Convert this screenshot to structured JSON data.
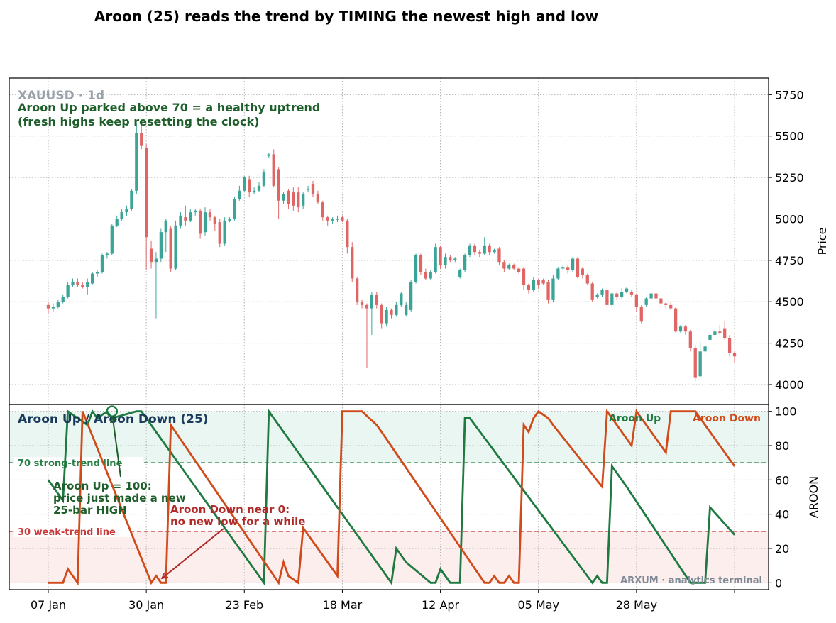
{
  "title": "Aroon (25) reads the trend by TIMING the newest high and low",
  "chart_data": [
    {
      "type": "candlestick",
      "watermark": "XAUUSD · 1d",
      "ylabel": "Price",
      "ylim": [
        3880,
        5850
      ],
      "yticks": [
        4000,
        4250,
        4500,
        4750,
        5000,
        5250,
        5500,
        5750
      ],
      "grid": true,
      "up_color": "#3aa597",
      "down_color": "#e06666",
      "annotation": "Aroon Up parked above 70 = a healthy uptrend\n(fresh highs keep resetting the clock)",
      "annotation_color": "#1e5e2a",
      "candles": [
        [
          0,
          4480,
          4460,
          4500,
          4430
        ],
        [
          1,
          4460,
          4470,
          4490,
          4440
        ],
        [
          2,
          4470,
          4500,
          4510,
          4460
        ],
        [
          3,
          4500,
          4530,
          4540,
          4490
        ],
        [
          4,
          4530,
          4600,
          4620,
          4520
        ],
        [
          5,
          4600,
          4620,
          4640,
          4590
        ],
        [
          6,
          4620,
          4600,
          4640,
          4590
        ],
        [
          7,
          4600,
          4590,
          4620,
          4580
        ],
        [
          8,
          4590,
          4620,
          4640,
          4540
        ],
        [
          9,
          4610,
          4670,
          4680,
          4600
        ],
        [
          10,
          4670,
          4680,
          4690,
          4650
        ],
        [
          11,
          4680,
          4780,
          4790,
          4670
        ],
        [
          12,
          4780,
          4790,
          4800,
          4760
        ],
        [
          13,
          4790,
          4960,
          4970,
          4780
        ],
        [
          14,
          4960,
          5000,
          5020,
          4950
        ],
        [
          15,
          5000,
          5040,
          5060,
          4990
        ],
        [
          16,
          5040,
          5060,
          5080,
          5020
        ],
        [
          17,
          5060,
          5170,
          5180,
          5050
        ],
        [
          18,
          5170,
          5520,
          5580,
          5150
        ],
        [
          19,
          5520,
          5440,
          5600,
          5420
        ],
        [
          20,
          5430,
          4890,
          5450,
          4690
        ],
        [
          21,
          4820,
          4740,
          4870,
          4700
        ],
        [
          22,
          4740,
          4760,
          4800,
          4400
        ],
        [
          23,
          4760,
          4920,
          4940,
          4740
        ],
        [
          24,
          4920,
          4990,
          5000,
          4800
        ],
        [
          25,
          4940,
          4700,
          4960,
          4680
        ],
        [
          26,
          4700,
          4960,
          4990,
          4690
        ],
        [
          27,
          4960,
          5020,
          5040,
          4940
        ],
        [
          28,
          5010,
          4990,
          5080,
          4960
        ],
        [
          29,
          4990,
          5040,
          5060,
          4980
        ],
        [
          30,
          5040,
          5050,
          5060,
          5020
        ],
        [
          31,
          5050,
          4910,
          5060,
          4880
        ],
        [
          32,
          4920,
          5040,
          5070,
          4900
        ],
        [
          33,
          5040,
          5010,
          5060,
          4990
        ],
        [
          34,
          5010,
          4970,
          5020,
          4930
        ],
        [
          35,
          4980,
          4850,
          5000,
          4830
        ],
        [
          36,
          4850,
          4990,
          5010,
          4840
        ],
        [
          37,
          4990,
          5000,
          5010,
          4980
        ],
        [
          38,
          5000,
          5120,
          5130,
          4990
        ],
        [
          39,
          5120,
          5170,
          5200,
          5110
        ],
        [
          40,
          5170,
          5250,
          5260,
          5160
        ],
        [
          41,
          5240,
          5160,
          5260,
          5130
        ],
        [
          42,
          5160,
          5170,
          5190,
          5150
        ],
        [
          43,
          5170,
          5200,
          5220,
          5160
        ],
        [
          44,
          5200,
          5280,
          5300,
          5190
        ],
        [
          45,
          5380,
          5390,
          5400,
          5370
        ],
        [
          46,
          5390,
          5200,
          5420,
          5190
        ],
        [
          47,
          5300,
          5110,
          5310,
          5000
        ],
        [
          48,
          5110,
          5150,
          5160,
          5090
        ],
        [
          49,
          5170,
          5090,
          5180,
          5060
        ],
        [
          50,
          5160,
          5080,
          5190,
          5050
        ],
        [
          51,
          5160,
          5070,
          5190,
          5040
        ],
        [
          52,
          5080,
          5150,
          5160,
          5060
        ],
        [
          53,
          5180,
          5180,
          5200,
          5160
        ],
        [
          54,
          5210,
          5150,
          5230,
          5130
        ],
        [
          55,
          5150,
          5100,
          5170,
          5090
        ],
        [
          56,
          5100,
          5010,
          5110,
          4990
        ],
        [
          57,
          5010,
          4990,
          5020,
          4960
        ],
        [
          58,
          4990,
          5000,
          5010,
          4970
        ],
        [
          59,
          5000,
          5000,
          5020,
          4980
        ],
        [
          60,
          5010,
          4990,
          5020,
          4980
        ],
        [
          61,
          4990,
          4830,
          5000,
          4790
        ],
        [
          62,
          4830,
          4640,
          4860,
          4620
        ],
        [
          63,
          4640,
          4500,
          4650,
          4480
        ],
        [
          64,
          4500,
          4480,
          4510,
          4460
        ],
        [
          65,
          4480,
          4460,
          4490,
          4100
        ],
        [
          66,
          4460,
          4540,
          4560,
          4300
        ],
        [
          67,
          4540,
          4480,
          4560,
          4460
        ],
        [
          68,
          4480,
          4370,
          4490,
          4340
        ],
        [
          69,
          4370,
          4450,
          4470,
          4350
        ],
        [
          70,
          4450,
          4420,
          4460,
          4400
        ],
        [
          71,
          4420,
          4480,
          4500,
          4410
        ],
        [
          72,
          4480,
          4550,
          4560,
          4470
        ],
        [
          73,
          4420,
          4480,
          4500,
          4410
        ],
        [
          74,
          4450,
          4620,
          4630,
          4440
        ],
        [
          75,
          4620,
          4780,
          4790,
          4610
        ],
        [
          76,
          4780,
          4680,
          4790,
          4660
        ],
        [
          77,
          4680,
          4640,
          4700,
          4630
        ],
        [
          78,
          4640,
          4680,
          4690,
          4630
        ],
        [
          79,
          4680,
          4830,
          4850,
          4670
        ],
        [
          80,
          4830,
          4720,
          4840,
          4700
        ],
        [
          81,
          4720,
          4770,
          4790,
          4700
        ],
        [
          82,
          4770,
          4750,
          4780,
          4740
        ],
        [
          83,
          4750,
          4760,
          4770,
          4740
        ],
        [
          84,
          4650,
          4690,
          4700,
          4640
        ],
        [
          85,
          4690,
          4780,
          4790,
          4680
        ],
        [
          86,
          4780,
          4840,
          4850,
          4770
        ],
        [
          87,
          4840,
          4800,
          4850,
          4780
        ],
        [
          88,
          4800,
          4790,
          4810,
          4770
        ],
        [
          89,
          4790,
          4840,
          4890,
          4780
        ],
        [
          90,
          4840,
          4800,
          4850,
          4780
        ],
        [
          91,
          4800,
          4810,
          4820,
          4790
        ],
        [
          92,
          4820,
          4740,
          4830,
          4720
        ],
        [
          93,
          4740,
          4700,
          4750,
          4680
        ],
        [
          94,
          4700,
          4720,
          4730,
          4690
        ],
        [
          95,
          4720,
          4700,
          4730,
          4690
        ],
        [
          96,
          4700,
          4680,
          4710,
          4670
        ],
        [
          97,
          4700,
          4600,
          4710,
          4570
        ],
        [
          98,
          4600,
          4570,
          4610,
          4550
        ],
        [
          99,
          4570,
          4630,
          4650,
          4560
        ],
        [
          100,
          4630,
          4600,
          4640,
          4580
        ],
        [
          101,
          4630,
          4610,
          4640,
          4600
        ],
        [
          102,
          4620,
          4510,
          4630,
          4490
        ],
        [
          103,
          4510,
          4640,
          4660,
          4500
        ],
        [
          104,
          4640,
          4700,
          4710,
          4630
        ],
        [
          105,
          4700,
          4710,
          4720,
          4690
        ],
        [
          106,
          4710,
          4690,
          4720,
          4670
        ],
        [
          107,
          4690,
          4760,
          4770,
          4680
        ],
        [
          108,
          4760,
          4650,
          4770,
          4640
        ],
        [
          109,
          4700,
          4660,
          4710,
          4640
        ],
        [
          110,
          4660,
          4610,
          4670,
          4600
        ],
        [
          111,
          4610,
          4510,
          4620,
          4500
        ],
        [
          112,
          4530,
          4540,
          4550,
          4520
        ],
        [
          113,
          4540,
          4570,
          4580,
          4530
        ],
        [
          114,
          4570,
          4480,
          4580,
          4460
        ],
        [
          115,
          4480,
          4550,
          4560,
          4470
        ],
        [
          116,
          4550,
          4530,
          4560,
          4510
        ],
        [
          117,
          4530,
          4560,
          4580,
          4520
        ],
        [
          118,
          4560,
          4580,
          4590,
          4550
        ],
        [
          119,
          4560,
          4540,
          4570,
          4530
        ],
        [
          120,
          4540,
          4470,
          4550,
          4440
        ],
        [
          121,
          4470,
          4380,
          4480,
          4370
        ],
        [
          122,
          4480,
          4520,
          4530,
          4470
        ],
        [
          123,
          4520,
          4550,
          4560,
          4510
        ],
        [
          124,
          4550,
          4520,
          4560,
          4500
        ],
        [
          125,
          4520,
          4490,
          4530,
          4470
        ],
        [
          126,
          4490,
          4480,
          4500,
          4460
        ],
        [
          127,
          4480,
          4460,
          4500,
          4450
        ],
        [
          128,
          4460,
          4320,
          4470,
          4310
        ],
        [
          129,
          4320,
          4350,
          4360,
          4310
        ],
        [
          130,
          4350,
          4320,
          4360,
          4300
        ],
        [
          131,
          4320,
          4220,
          4330,
          4200
        ],
        [
          132,
          4220,
          4040,
          4240,
          4020
        ],
        [
          133,
          4050,
          4200,
          4260,
          4040
        ],
        [
          134,
          4200,
          4230,
          4250,
          4180
        ],
        [
          135,
          4270,
          4300,
          4320,
          4260
        ],
        [
          136,
          4300,
          4320,
          4340,
          4290
        ],
        [
          137,
          4320,
          4310,
          4360,
          4300
        ],
        [
          138,
          4340,
          4280,
          4380,
          4270
        ],
        [
          139,
          4280,
          4190,
          4300,
          4170
        ],
        [
          140,
          4190,
          4170,
          4200,
          4130
        ]
      ]
    },
    {
      "type": "line",
      "title": "Aroon Up / Aroon Down (25)",
      "ylabel": "AROON",
      "ylim": [
        -4,
        104
      ],
      "yticks": [
        0,
        20,
        40,
        60,
        80,
        100
      ],
      "grid": true,
      "legend_placement": "top-right",
      "xticks": [
        {
          "x": 0,
          "label": "07 Jan"
        },
        {
          "x": 20,
          "label": "30 Jan"
        },
        {
          "x": 40,
          "label": "23 Feb"
        },
        {
          "x": 60,
          "label": "18 Mar"
        },
        {
          "x": 80,
          "label": "12 Apr"
        },
        {
          "x": 100,
          "label": "05 May"
        },
        {
          "x": 120,
          "label": "28 May"
        },
        {
          "x": 140,
          "label": ""
        }
      ],
      "reference_lines": [
        {
          "y": 70,
          "label": "70  strong-trend line",
          "color": "#2a8048"
        },
        {
          "y": 30,
          "label": "30  weak-trend line",
          "color": "#c93a3a"
        }
      ],
      "bands": [
        {
          "from": 70,
          "to": 100,
          "color": "#eaf6f1"
        },
        {
          "from": 0,
          "to": 30,
          "color": "#fdeeee"
        }
      ],
      "series": [
        {
          "name": "Aroon Up",
          "color": "#1e7a40",
          "x": [
            0,
            3,
            4,
            8,
            9,
            10,
            12,
            13,
            18,
            19,
            44,
            45,
            70,
            71,
            72,
            73,
            78,
            79,
            80,
            82,
            83,
            84,
            85,
            86,
            111,
            112,
            113,
            114,
            115,
            116,
            117,
            118,
            131,
            134,
            135,
            140
          ],
          "y": [
            60,
            48,
            100,
            92,
            100,
            96,
            100,
            96,
            100,
            100,
            0,
            100,
            0,
            20,
            16,
            12,
            0,
            0,
            8,
            0,
            0,
            0,
            96,
            96,
            0,
            4,
            0,
            0,
            68,
            64,
            60,
            56,
            0,
            0,
            44,
            28
          ]
        },
        {
          "name": "Aroon Down",
          "color": "#d04a1a",
          "x": [
            0,
            3,
            4,
            6,
            7,
            21,
            22,
            23,
            24,
            25,
            47,
            48,
            49,
            51,
            52,
            53,
            54,
            59,
            60,
            64,
            67,
            68,
            89,
            90,
            91,
            92,
            93,
            94,
            95,
            96,
            97,
            98,
            99,
            100,
            102,
            103,
            113,
            114,
            119,
            120,
            126,
            127,
            131,
            132,
            140
          ],
          "y": [
            0,
            0,
            8,
            0,
            100,
            0,
            4,
            0,
            0,
            92,
            0,
            12,
            4,
            0,
            32,
            28,
            24,
            4,
            100,
            100,
            92,
            88,
            0,
            0,
            4,
            0,
            0,
            4,
            0,
            0,
            92,
            88,
            96,
            100,
            96,
            92,
            56,
            100,
            80,
            100,
            76,
            100,
            100,
            100,
            68
          ]
        }
      ],
      "annotations": [
        {
          "text": "Aroon Up = 100:\nprice just made a new\n25-bar HIGH",
          "color": "#1e5e2a",
          "points_to": [
            13,
            100
          ]
        },
        {
          "text": "Aroon Down near 0:\nno new low for a while",
          "color": "#b02a2a",
          "points_to": [
            23,
            2
          ]
        }
      ],
      "footer": "ARXUM · analytics terminal"
    }
  ]
}
